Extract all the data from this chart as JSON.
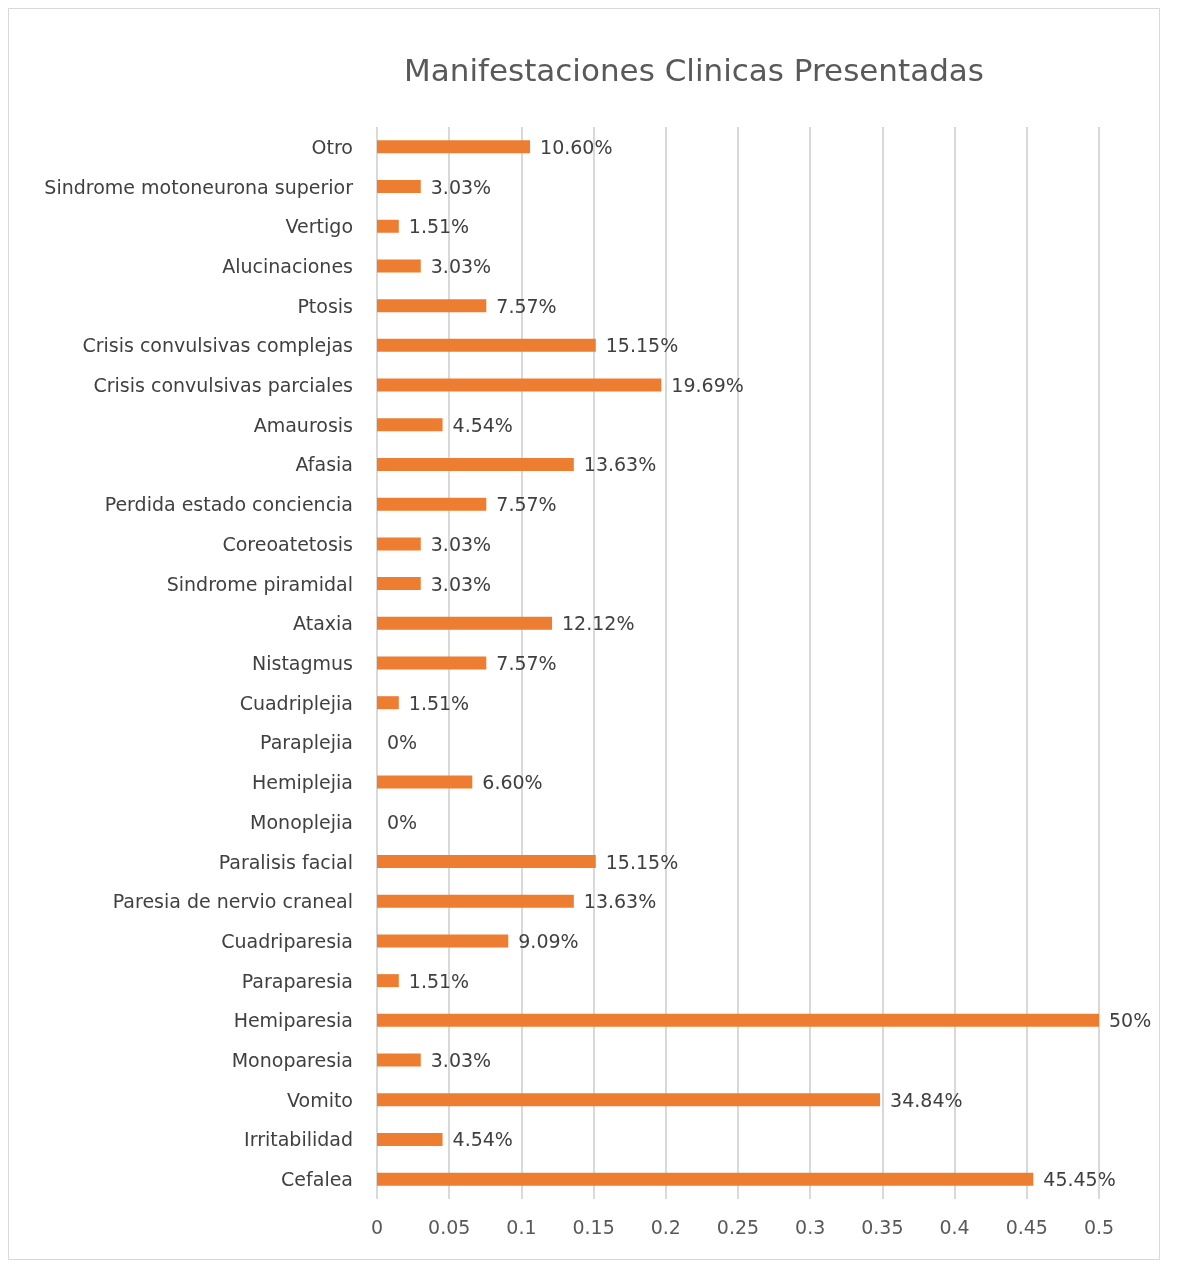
{
  "chart_data": {
    "type": "bar",
    "orientation": "horizontal",
    "title": "Manifestaciones Clinicas Presentadas",
    "categories": [
      "Otro",
      "Sindrome motoneurona superior",
      "Vertigo",
      "Alucinaciones",
      "Ptosis",
      "Crisis convulsivas complejas",
      "Crisis convulsivas parciales",
      "Amaurosis",
      "Afasia",
      "Perdida estado conciencia",
      "Coreoatetosis",
      "Sindrome piramidal",
      "Ataxia",
      "Nistagmus",
      "Cuadriplejia",
      "Paraplejia",
      "Hemiplejia",
      "Monoplejia",
      "Paralisis facial",
      "Paresia de nervio craneal",
      "Cuadriparesia",
      "Paraparesia",
      "Hemiparesia",
      "Monoparesia",
      "Vomito",
      "Irritabilidad",
      "Cefalea"
    ],
    "values": [
      0.106,
      0.0303,
      0.0151,
      0.0303,
      0.0757,
      0.1515,
      0.1969,
      0.0454,
      0.1363,
      0.0757,
      0.0303,
      0.0303,
      0.1212,
      0.0757,
      0.0151,
      0,
      0.066,
      0,
      0.1515,
      0.1363,
      0.0909,
      0.0151,
      0.5,
      0.0303,
      0.3484,
      0.0454,
      0.4545
    ],
    "value_labels": [
      "10.60%",
      "3.03%",
      "1.51%",
      "3.03%",
      "7.57%",
      "15.15%",
      "19.69%",
      "4.54%",
      "13.63%",
      "7.57%",
      "3.03%",
      "3.03%",
      "12.12%",
      "7.57%",
      "1.51%",
      "0%",
      "6.60%",
      "0%",
      "15.15%",
      "13.63%",
      "9.09%",
      "1.51%",
      "50%",
      "3.03%",
      "34.84%",
      "4.54%",
      "45.45%"
    ],
    "color": "#ed7d31",
    "xlim": [
      0,
      0.5
    ],
    "xticks": [
      0,
      0.05,
      0.1,
      0.15,
      0.2,
      0.25,
      0.3,
      0.35,
      0.4,
      0.45,
      0.5
    ],
    "grid": "x"
  }
}
